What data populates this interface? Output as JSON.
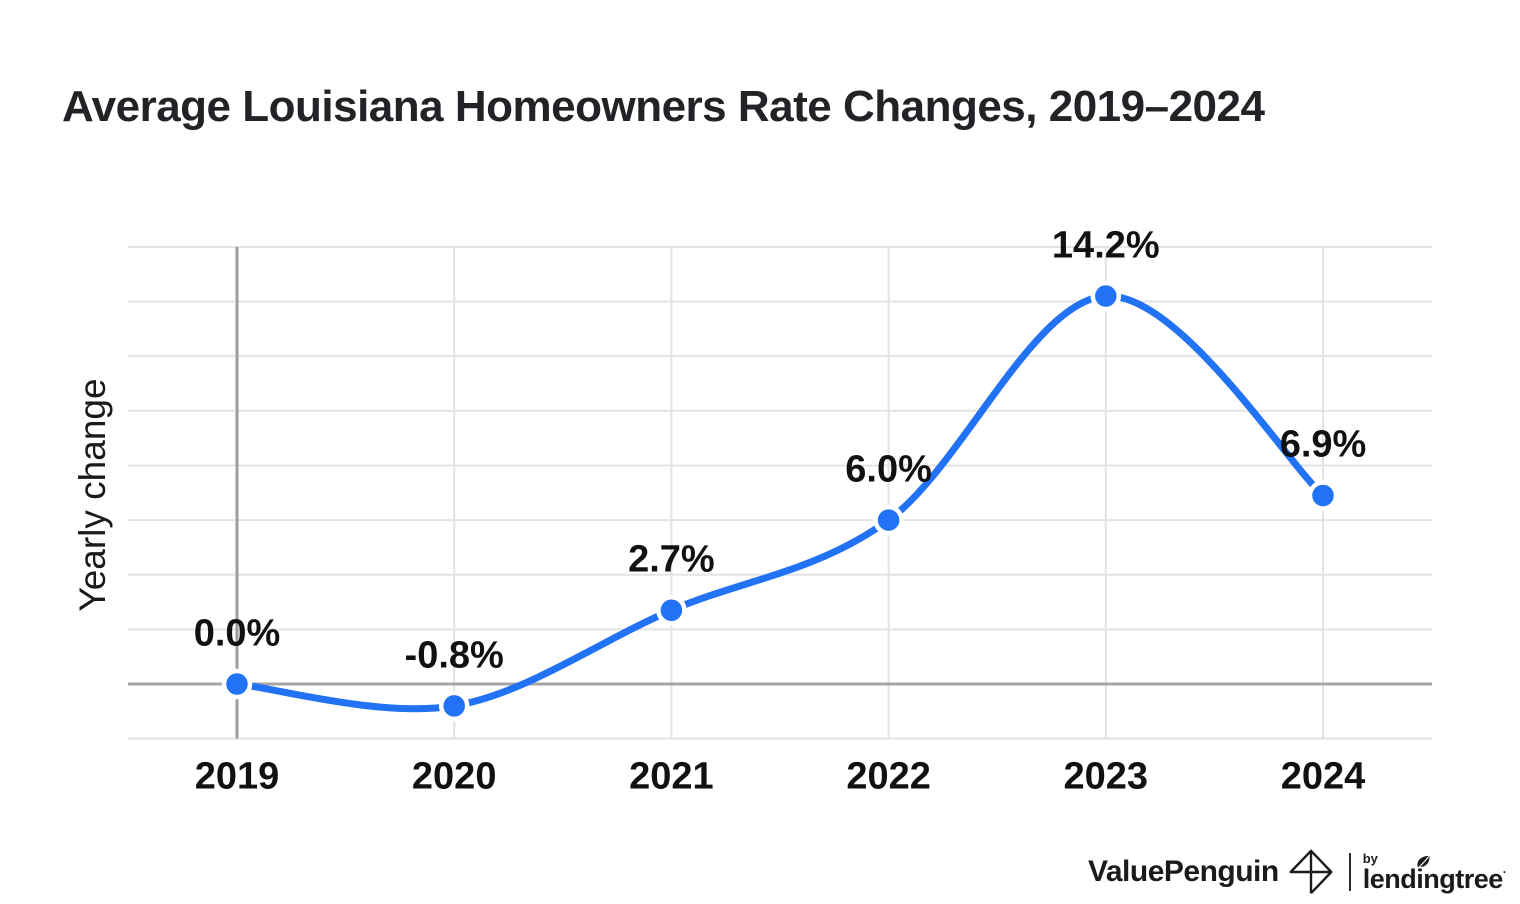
{
  "header": {
    "title": "Average Louisiana Homeowners Rate Changes, 2019–2024"
  },
  "chart_data": {
    "type": "line",
    "title": "Average Louisiana Homeowners Rate Changes, 2019–2024",
    "categories": [
      "2019",
      "2020",
      "2021",
      "2022",
      "2023",
      "2024"
    ],
    "values": [
      0.0,
      -0.8,
      2.7,
      6.0,
      14.2,
      6.9
    ],
    "point_labels": [
      "0.0%",
      "-0.8%",
      "2.7%",
      "6.0%",
      "14.2%",
      "6.9%"
    ],
    "xlabel": "",
    "ylabel": "Yearly change",
    "ylim": [
      -2,
      16
    ],
    "gridline_step": 2,
    "grid": true,
    "legend": "none",
    "colors": {
      "line": "#2272f5",
      "marker_fill": "#2272f5",
      "marker_ring": "#ffffff",
      "gridline": "#e3e3e3",
      "zero_line": "#a6a6a6",
      "axis_line": "#9e9e9e",
      "label": "#111111"
    }
  },
  "footer": {
    "valuepenguin": "ValuePenguin",
    "by": "by",
    "lendingtree": "lendingtree",
    "reg_mark": "·",
    "icons": {
      "mark": "penguin-diamond-icon",
      "leaf": "leaf-icon"
    }
  }
}
